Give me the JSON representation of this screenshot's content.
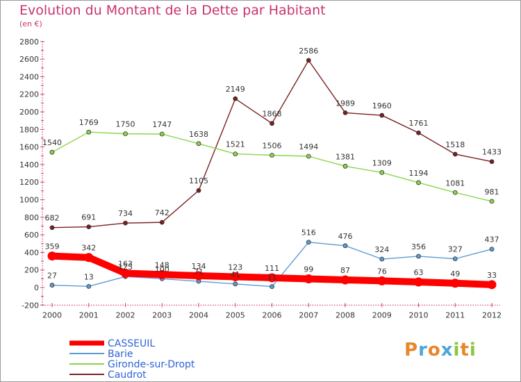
{
  "title": "Evolution du Montant de la Dette par Habitant",
  "subtitle": "(en €)",
  "brand": {
    "parts": [
      {
        "text": "P",
        "color": "#e8862a"
      },
      {
        "text": "r",
        "color": "#4aa8d8"
      },
      {
        "text": "o",
        "color": "#e8862a"
      },
      {
        "text": "x",
        "color": "#4aa8d8"
      },
      {
        "text": "i",
        "color": "#8cc63f"
      },
      {
        "text": "t",
        "color": "#e8862a"
      },
      {
        "text": "i",
        "color": "#8cc63f"
      }
    ]
  },
  "chart_data": {
    "type": "line",
    "title": "Evolution du Montant de la Dette par Habitant",
    "subtitle": "(en €)",
    "x": [
      "2000",
      "2001",
      "2002",
      "2003",
      "2004",
      "2005",
      "2006",
      "2007",
      "2008",
      "2009",
      "2010",
      "2011",
      "2012"
    ],
    "yticks": [
      "-200",
      "0",
      "200",
      "400",
      "600",
      "800",
      "1000",
      "1200",
      "1400",
      "1600",
      "1800",
      "2000",
      "2200",
      "2400",
      "2600",
      "2800"
    ],
    "ylim": [
      -200,
      2800
    ],
    "grid": false,
    "legend_position": "bottom-left",
    "series": [
      {
        "name": "CASSEUIL",
        "color": "#ff0000",
        "style": "thick",
        "values": [
          359,
          342,
          163,
          148,
          134,
          123,
          111,
          99,
          87,
          76,
          63,
          49,
          33
        ],
        "labels": [
          "359",
          "342",
          "163",
          "148",
          "134",
          "123",
          "111",
          "99",
          "87",
          "76",
          "63",
          "49",
          "33"
        ]
      },
      {
        "name": "Barie",
        "color": "#5b9bd5",
        "style": "thin",
        "values": [
          27,
          13,
          125,
          100,
          71,
          41,
          11,
          516,
          476,
          324,
          356,
          327,
          437
        ],
        "labels": [
          "27",
          "13",
          "125",
          "100",
          "71",
          "41",
          "11",
          "516",
          "476",
          "324",
          "356",
          "327",
          "437"
        ]
      },
      {
        "name": "Gironde-sur-Dropt",
        "color": "#8bd44a",
        "style": "thin",
        "values": [
          1540,
          1769,
          1750,
          1747,
          1638,
          1521,
          1506,
          1494,
          1381,
          1309,
          1194,
          1081,
          981
        ],
        "labels": [
          "1540",
          "1769",
          "1750",
          "1747",
          "1638",
          "1521",
          "1506",
          "1494",
          "1381",
          "1309",
          "1194",
          "1081",
          "981"
        ]
      },
      {
        "name": "Caudrot",
        "color": "#7a1f1f",
        "style": "thin",
        "values": [
          682,
          691,
          734,
          742,
          1105,
          2149,
          1868,
          2586,
          1989,
          1960,
          1761,
          1518,
          1433
        ],
        "labels": [
          "682",
          "691",
          "734",
          "742",
          "1105",
          "2149",
          "1868",
          "2586",
          "1989",
          "1960",
          "1761",
          "1518",
          "1433"
        ]
      }
    ]
  }
}
